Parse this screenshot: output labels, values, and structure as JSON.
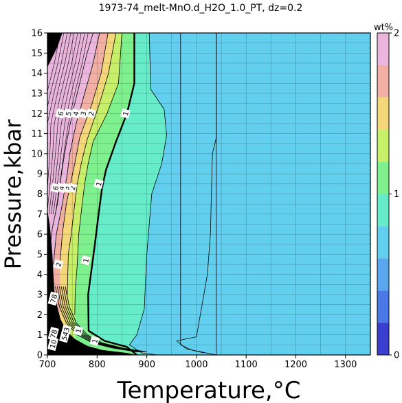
{
  "chart_data": {
    "type": "heatmap",
    "title": "1973-74_melt-MnO.d_H2O_1.0_PT, dz=0.2",
    "xlabel": "Temperature,°C",
    "ylabel": "Pressure,kbar",
    "xlim": [
      700,
      1350
    ],
    "ylim": [
      0,
      16
    ],
    "x_ticks": [
      700,
      800,
      900,
      1000,
      1100,
      1200,
      1300
    ],
    "y_ticks": [
      0,
      1,
      2,
      3,
      4,
      5,
      6,
      7,
      8,
      9,
      10,
      11,
      12,
      13,
      14,
      15,
      16
    ],
    "grid": true,
    "colorbar": {
      "label": "wt%",
      "range": [
        0,
        2
      ],
      "ticks": [
        0,
        1,
        2
      ],
      "step": 0.2,
      "colors": [
        "#3b3fcf",
        "#4a78e6",
        "#5aa6ef",
        "#62cfee",
        "#66ecc8",
        "#7ff08e",
        "#c8ef6a",
        "#f3d77a",
        "#f2b0a4",
        "#eab6dd"
      ]
    },
    "boundaries": [
      {
        "level": 0.2,
        "points": [
          [
            968,
            16
          ],
          [
            968,
            0.5
          ],
          [
            990,
            0.25
          ],
          [
            1015,
            0.1
          ]
        ]
      },
      {
        "level": 0.4,
        "points": [
          [
            1040,
            16
          ],
          [
            1040,
            10.8
          ],
          [
            1032,
            10.0
          ],
          [
            1028,
            6.0
          ],
          [
            1022,
            4.0
          ],
          [
            1000,
            0.9
          ],
          [
            960,
            0.7
          ],
          [
            980,
            0.3
          ],
          [
            1040,
            0
          ]
        ]
      },
      {
        "level": 0.6,
        "points": [
          [
            1040,
            16
          ],
          [
            1040,
            0
          ]
        ]
      },
      {
        "level": 0.8,
        "points": [
          [
            905,
            16
          ],
          [
            908,
            13.2
          ],
          [
            935,
            12.2
          ],
          [
            940,
            10.9
          ],
          [
            930,
            9.5
          ],
          [
            910,
            8.0
          ],
          [
            900,
            5.0
          ],
          [
            895,
            2.3
          ],
          [
            880,
            1.0
          ],
          [
            865,
            0.5
          ],
          [
            890,
            0.1
          ],
          [
            920,
            0
          ]
        ]
      },
      {
        "level": 1.0,
        "points": [
          [
            875,
            16
          ],
          [
            875,
            13.5
          ],
          [
            860,
            12.0
          ],
          [
            838,
            10.6
          ],
          [
            818,
            9.2
          ],
          [
            810,
            8.3
          ],
          [
            803,
            7.0
          ],
          [
            795,
            5.4
          ],
          [
            782,
            3.0
          ],
          [
            783,
            1.2
          ],
          [
            815,
            0.7
          ],
          [
            860,
            0.4
          ],
          [
            880,
            0
          ]
        ]
      },
      {
        "level": 1.2,
        "points": [
          [
            850,
            16
          ],
          [
            843,
            13.5
          ],
          [
            820,
            12.0
          ],
          [
            792,
            10.6
          ],
          [
            782,
            9.5
          ],
          [
            775,
            8.5
          ],
          [
            770,
            7.5
          ],
          [
            763,
            6.0
          ],
          [
            760,
            4.5
          ],
          [
            756,
            3.2
          ],
          [
            755,
            2.0
          ]
        ]
      },
      {
        "level": 1.4,
        "points": [
          [
            838,
            16
          ],
          [
            823,
            14.0
          ],
          [
            805,
            12.5
          ],
          [
            780,
            10.7
          ],
          [
            768,
            9.5
          ],
          [
            760,
            8.5
          ],
          [
            755,
            7.5
          ],
          [
            748,
            6.0
          ],
          [
            742,
            5.0
          ],
          [
            740,
            3.0
          ]
        ]
      },
      {
        "level": 1.6,
        "points": [
          [
            822,
            16
          ],
          [
            808,
            14.0
          ],
          [
            790,
            12.5
          ],
          [
            765,
            10.8
          ],
          [
            755,
            9.5
          ],
          [
            748,
            8.7
          ],
          [
            738,
            7.5
          ],
          [
            730,
            6.0
          ],
          [
            725,
            4.5
          ]
        ]
      },
      {
        "level": 1.8,
        "points": [
          [
            805,
            16
          ],
          [
            792,
            14.5
          ],
          [
            775,
            13.0
          ],
          [
            758,
            11.5
          ],
          [
            745,
            10.0
          ],
          [
            740,
            9.0
          ],
          [
            730,
            7.5
          ],
          [
            718,
            6.0
          ],
          [
            712,
            4.5
          ]
        ]
      },
      {
        "level": 2.0,
        "points": [
          [
            792,
            16
          ],
          [
            780,
            15.0
          ],
          [
            765,
            13.5
          ],
          [
            750,
            12.0
          ],
          [
            738,
            10.5
          ],
          [
            730,
            9.3
          ],
          [
            720,
            7.5
          ],
          [
            710,
            6.3
          ],
          [
            704,
            5.0
          ]
        ]
      }
    ],
    "contour_labels": [
      {
        "text": "1",
        "x": 857,
        "y": 12.0
      },
      {
        "text": "1",
        "x": 803,
        "y": 8.5
      },
      {
        "text": "1",
        "x": 777,
        "y": 4.7
      },
      {
        "text": "1",
        "x": 762,
        "y": 1.2
      },
      {
        "text": "1",
        "x": 795,
        "y": 0.7
      },
      {
        "text": "2",
        "x": 788,
        "y": 12.0
      },
      {
        "text": "3",
        "x": 772,
        "y": 12.0
      },
      {
        "text": "4",
        "x": 757,
        "y": 12.0
      },
      {
        "text": "5",
        "x": 742,
        "y": 12.0
      },
      {
        "text": "6",
        "x": 726,
        "y": 12.0
      },
      {
        "text": "2",
        "x": 750,
        "y": 8.3
      },
      {
        "text": "3",
        "x": 738,
        "y": 8.3
      },
      {
        "text": "4",
        "x": 728,
        "y": 8.3
      },
      {
        "text": "6",
        "x": 716,
        "y": 8.3
      },
      {
        "text": "2",
        "x": 722,
        "y": 4.5
      },
      {
        "text": "78",
        "x": 712,
        "y": 2.8
      },
      {
        "text": "543",
        "x": 736,
        "y": 1.05
      },
      {
        "text": "78",
        "x": 712,
        "y": 1.05
      },
      {
        "text": "10",
        "x": 711,
        "y": 0.55
      }
    ]
  }
}
